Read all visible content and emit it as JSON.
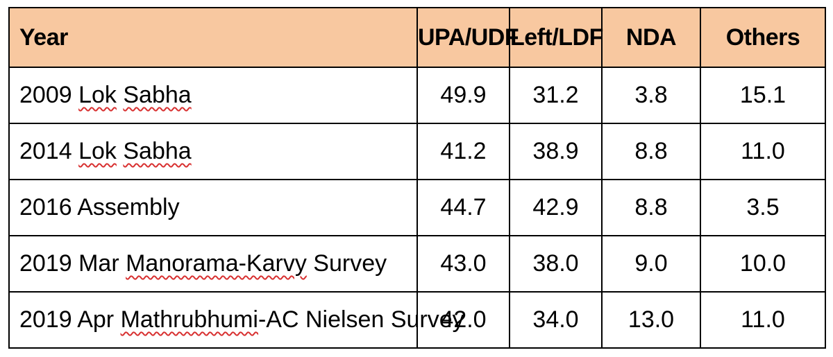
{
  "table": {
    "headers": {
      "year": "Year",
      "upa": "UPA/UDF",
      "left": "Left/LDF",
      "nda": "NDA",
      "others": "Others"
    },
    "rows": [
      {
        "year_prefix": "2009 ",
        "year_word1": "Lok",
        "year_space": " ",
        "year_word2": "Sabha",
        "year_suffix": "",
        "upa": "49.9",
        "left": "31.2",
        "nda": "3.8",
        "others": "15.1"
      },
      {
        "year_prefix": "2014 ",
        "year_word1": "Lok",
        "year_space": " ",
        "year_word2": "Sabha",
        "year_suffix": "",
        "upa": "41.2",
        "left": "38.9",
        "nda": "8.8",
        "others": "11.0"
      },
      {
        "year_full": "2016 Assembly",
        "upa": "44.7",
        "left": "42.9",
        "nda": "8.8",
        "others": "3.5"
      },
      {
        "year_prefix": "2019 Mar ",
        "year_word1": "Manorama-Karvy",
        "year_suffix": " Survey",
        "upa": "43.0",
        "left": "38.0",
        "nda": "9.0",
        "others": "10.0"
      },
      {
        "year_prefix": "2019 Apr ",
        "year_word1": "Mathrubhumi",
        "year_suffix": "-AC Nielsen Survey",
        "upa": "42.0",
        "left": "34.0",
        "nda": "13.0",
        "others": "11.0"
      }
    ]
  },
  "colors": {
    "header_background": "#f8c8a0",
    "spellcheck_underline": "#d83030",
    "border": "#000000"
  }
}
